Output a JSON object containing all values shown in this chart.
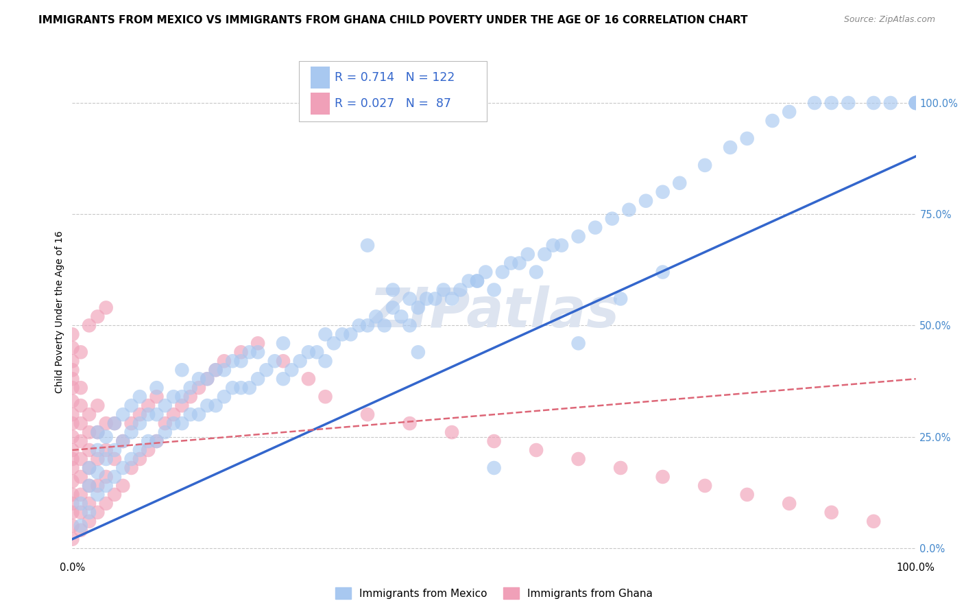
{
  "title": "IMMIGRANTS FROM MEXICO VS IMMIGRANTS FROM GHANA CHILD POVERTY UNDER THE AGE OF 16 CORRELATION CHART",
  "source": "Source: ZipAtlas.com",
  "ylabel": "Child Poverty Under the Age of 16",
  "ytick_labels": [
    "100.0%",
    "75.0%",
    "50.0%",
    "25.0%",
    "0.0%"
  ],
  "ytick_values": [
    1.0,
    0.75,
    0.5,
    0.25,
    0.0
  ],
  "xlim": [
    0,
    1.0
  ],
  "ylim": [
    -0.02,
    1.08
  ],
  "mexico_R": 0.714,
  "mexico_N": 122,
  "ghana_R": 0.027,
  "ghana_N": 87,
  "mexico_color": "#a8c8f0",
  "ghana_color": "#f0a0b8",
  "mexico_line_color": "#3366cc",
  "ghana_line_color": "#dd6677",
  "legend_R_color": "#3366cc",
  "background_color": "#ffffff",
  "watermark_text": "ZIPatlas",
  "watermark_color": "#dde4f0",
  "grid_color": "#c8c8c8",
  "right_ytick_color": "#4488cc",
  "mexico_trendline_x": [
    0.0,
    1.0
  ],
  "mexico_trendline_y": [
    0.02,
    0.88
  ],
  "ghana_trendline_x": [
    0.0,
    1.0
  ],
  "ghana_trendline_y": [
    0.22,
    0.38
  ],
  "mexico_scatter_x": [
    0.01,
    0.01,
    0.02,
    0.02,
    0.02,
    0.03,
    0.03,
    0.03,
    0.03,
    0.04,
    0.04,
    0.04,
    0.05,
    0.05,
    0.05,
    0.06,
    0.06,
    0.06,
    0.07,
    0.07,
    0.07,
    0.08,
    0.08,
    0.08,
    0.09,
    0.09,
    0.1,
    0.1,
    0.1,
    0.11,
    0.11,
    0.12,
    0.12,
    0.13,
    0.13,
    0.13,
    0.14,
    0.14,
    0.15,
    0.15,
    0.16,
    0.16,
    0.17,
    0.17,
    0.18,
    0.18,
    0.19,
    0.19,
    0.2,
    0.2,
    0.21,
    0.21,
    0.22,
    0.22,
    0.23,
    0.24,
    0.25,
    0.25,
    0.26,
    0.27,
    0.28,
    0.29,
    0.3,
    0.3,
    0.31,
    0.32,
    0.33,
    0.34,
    0.35,
    0.36,
    0.37,
    0.38,
    0.39,
    0.4,
    0.4,
    0.41,
    0.42,
    0.43,
    0.44,
    0.45,
    0.46,
    0.47,
    0.48,
    0.49,
    0.5,
    0.51,
    0.52,
    0.53,
    0.54,
    0.55,
    0.56,
    0.57,
    0.58,
    0.6,
    0.62,
    0.64,
    0.66,
    0.68,
    0.7,
    0.72,
    0.75,
    0.78,
    0.8,
    0.83,
    0.85,
    0.88,
    0.9,
    0.92,
    0.95,
    0.97,
    1.0,
    1.0,
    1.0,
    1.0,
    0.48,
    0.5,
    0.38,
    0.41,
    0.35,
    0.6,
    0.65,
    0.7
  ],
  "mexico_scatter_y": [
    0.05,
    0.1,
    0.08,
    0.14,
    0.18,
    0.12,
    0.17,
    0.22,
    0.26,
    0.14,
    0.2,
    0.25,
    0.16,
    0.22,
    0.28,
    0.18,
    0.24,
    0.3,
    0.2,
    0.26,
    0.32,
    0.22,
    0.28,
    0.34,
    0.24,
    0.3,
    0.24,
    0.3,
    0.36,
    0.26,
    0.32,
    0.28,
    0.34,
    0.28,
    0.34,
    0.4,
    0.3,
    0.36,
    0.3,
    0.38,
    0.32,
    0.38,
    0.32,
    0.4,
    0.34,
    0.4,
    0.36,
    0.42,
    0.36,
    0.42,
    0.36,
    0.44,
    0.38,
    0.44,
    0.4,
    0.42,
    0.38,
    0.46,
    0.4,
    0.42,
    0.44,
    0.44,
    0.42,
    0.48,
    0.46,
    0.48,
    0.48,
    0.5,
    0.5,
    0.52,
    0.5,
    0.54,
    0.52,
    0.5,
    0.56,
    0.54,
    0.56,
    0.56,
    0.58,
    0.56,
    0.58,
    0.6,
    0.6,
    0.62,
    0.58,
    0.62,
    0.64,
    0.64,
    0.66,
    0.62,
    0.66,
    0.68,
    0.68,
    0.7,
    0.72,
    0.74,
    0.76,
    0.78,
    0.8,
    0.82,
    0.86,
    0.9,
    0.92,
    0.96,
    0.98,
    1.0,
    1.0,
    1.0,
    1.0,
    1.0,
    1.0,
    1.0,
    1.0,
    1.0,
    0.6,
    0.18,
    0.58,
    0.44,
    0.68,
    0.46,
    0.56,
    0.62
  ],
  "ghana_scatter_x": [
    0.0,
    0.0,
    0.0,
    0.0,
    0.0,
    0.0,
    0.0,
    0.0,
    0.0,
    0.0,
    0.0,
    0.0,
    0.0,
    0.0,
    0.0,
    0.0,
    0.0,
    0.0,
    0.01,
    0.01,
    0.01,
    0.01,
    0.01,
    0.01,
    0.01,
    0.01,
    0.01,
    0.02,
    0.02,
    0.02,
    0.02,
    0.02,
    0.02,
    0.02,
    0.03,
    0.03,
    0.03,
    0.03,
    0.03,
    0.04,
    0.04,
    0.04,
    0.04,
    0.05,
    0.05,
    0.05,
    0.06,
    0.06,
    0.07,
    0.07,
    0.08,
    0.08,
    0.09,
    0.09,
    0.1,
    0.1,
    0.11,
    0.12,
    0.13,
    0.14,
    0.15,
    0.16,
    0.17,
    0.18,
    0.2,
    0.22,
    0.25,
    0.28,
    0.3,
    0.35,
    0.4,
    0.45,
    0.5,
    0.55,
    0.6,
    0.65,
    0.7,
    0.75,
    0.8,
    0.85,
    0.9,
    0.95,
    0.0,
    0.01,
    0.02,
    0.03,
    0.04
  ],
  "ghana_scatter_y": [
    0.02,
    0.05,
    0.08,
    0.1,
    0.12,
    0.15,
    0.18,
    0.2,
    0.22,
    0.25,
    0.28,
    0.3,
    0.33,
    0.36,
    0.38,
    0.4,
    0.42,
    0.45,
    0.04,
    0.08,
    0.12,
    0.16,
    0.2,
    0.24,
    0.28,
    0.32,
    0.36,
    0.06,
    0.1,
    0.14,
    0.18,
    0.22,
    0.26,
    0.3,
    0.08,
    0.14,
    0.2,
    0.26,
    0.32,
    0.1,
    0.16,
    0.22,
    0.28,
    0.12,
    0.2,
    0.28,
    0.14,
    0.24,
    0.18,
    0.28,
    0.2,
    0.3,
    0.22,
    0.32,
    0.24,
    0.34,
    0.28,
    0.3,
    0.32,
    0.34,
    0.36,
    0.38,
    0.4,
    0.42,
    0.44,
    0.46,
    0.42,
    0.38,
    0.34,
    0.3,
    0.28,
    0.26,
    0.24,
    0.22,
    0.2,
    0.18,
    0.16,
    0.14,
    0.12,
    0.1,
    0.08,
    0.06,
    0.48,
    0.44,
    0.5,
    0.52,
    0.54
  ]
}
